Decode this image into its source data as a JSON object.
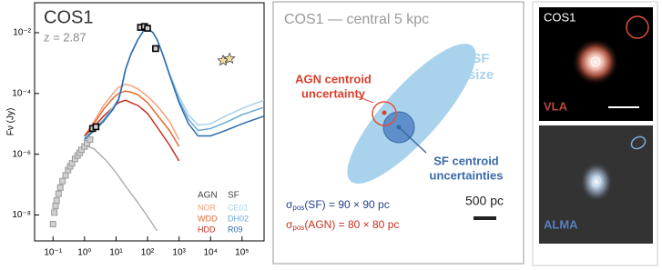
{
  "chart_data": {
    "type": "line",
    "title": "COS1",
    "subtitle": "z = 2.87",
    "ylabel": "Fν (Jy)",
    "log_x": true,
    "log_y": true,
    "xlim": [
      0.026,
      500000
    ],
    "ylim": [
      1.4e-09,
      0.097
    ],
    "xticks": [
      {
        "value": 0.1,
        "label": "10⁻¹"
      },
      {
        "value": 1,
        "label": "10⁰"
      },
      {
        "value": 10,
        "label": "10¹"
      },
      {
        "value": 100,
        "label": "10²"
      },
      {
        "value": 1000,
        "label": "10³"
      },
      {
        "value": 10000,
        "label": "10⁴"
      },
      {
        "value": 100000,
        "label": "10⁵"
      }
    ],
    "yticks": [
      {
        "value": 0.01,
        "label": "10⁻²"
      },
      {
        "value": 0.0001,
        "label": "10⁻⁴"
      },
      {
        "value": 1e-06,
        "label": "10⁻⁶"
      },
      {
        "value": 1e-08,
        "label": "10⁻⁸"
      }
    ],
    "legend_headers": [
      "AGN",
      "SF"
    ],
    "series": [
      {
        "name": "NOR",
        "color": "#f4a07a",
        "style": "line",
        "x": [
          1,
          2,
          4,
          8,
          12,
          20,
          30,
          50,
          100,
          200,
          500,
          1000
        ],
        "values": [
          4e-06,
          1.2e-05,
          4e-05,
          0.0001,
          0.00016,
          0.0002,
          0.00018,
          0.00014,
          8e-05,
          4e-05,
          1.2e-05,
          3e-06
        ]
      },
      {
        "name": "WDD",
        "color": "#e8692e",
        "style": "line",
        "x": [
          1,
          2,
          4,
          8,
          12,
          20,
          30,
          50,
          100,
          200,
          500,
          1000
        ],
        "values": [
          4e-06,
          1e-05,
          3e-05,
          7e-05,
          0.0001,
          0.00012,
          0.00011,
          9e-05,
          5e-05,
          2e-05,
          6e-06,
          1.8e-06
        ]
      },
      {
        "name": "HDD",
        "color": "#c0301f",
        "style": "line",
        "x": [
          1,
          2,
          4,
          8,
          12,
          20,
          30,
          50,
          100,
          200,
          500,
          1000
        ],
        "values": [
          4e-06,
          8e-06,
          1.8e-05,
          3.5e-05,
          5e-05,
          6e-05,
          5e-05,
          4e-05,
          2.2e-05,
          8e-06,
          2e-06,
          6e-07
        ]
      },
      {
        "name": "CE01",
        "color": "#a8d0e8",
        "style": "line",
        "x": [
          1,
          2,
          4,
          8,
          12,
          15,
          20,
          30,
          50,
          80,
          100,
          150,
          200,
          300,
          500,
          1000,
          2000,
          4000,
          10000,
          30000,
          100000,
          500000
        ],
        "values": [
          3.5e-06,
          7e-06,
          1.4e-05,
          3.5e-05,
          7e-05,
          0.00017,
          0.00065,
          0.0021,
          0.0062,
          0.013,
          0.014,
          0.01,
          0.0062,
          0.0021,
          0.00045,
          8e-05,
          2e-05,
          9e-06,
          1e-05,
          1.8e-05,
          3.2e-05,
          6e-05
        ]
      },
      {
        "name": "DH02",
        "color": "#6aa8d8",
        "style": "line",
        "x": [
          1,
          2,
          4,
          8,
          12,
          15,
          20,
          30,
          50,
          80,
          100,
          150,
          200,
          300,
          500,
          1000,
          2000,
          4000,
          10000,
          30000,
          100000,
          500000
        ],
        "values": [
          3.2e-06,
          6.5e-06,
          1.3e-05,
          3.2e-05,
          6.5e-05,
          0.00016,
          0.00062,
          0.002,
          0.006,
          0.013,
          0.014,
          0.01,
          0.006,
          0.002,
          0.00042,
          6e-05,
          1.4e-05,
          6e-06,
          7e-06,
          1.1e-05,
          2e-05,
          3.5e-05
        ]
      },
      {
        "name": "R09",
        "color": "#2d6cab",
        "style": "line",
        "x": [
          1,
          2,
          4,
          8,
          12,
          15,
          20,
          30,
          50,
          80,
          100,
          150,
          200,
          300,
          500,
          1000,
          2000,
          4000,
          10000,
          30000,
          100000,
          500000
        ],
        "values": [
          3e-06,
          6e-06,
          1.2e-05,
          3e-05,
          6e-05,
          0.00015,
          0.0006,
          0.002,
          0.006,
          0.013,
          0.014,
          0.01,
          0.006,
          0.002,
          0.0004,
          5e-05,
          1e-05,
          4e-06,
          4e-06,
          6e-06,
          1e-05,
          1.8e-05
        ]
      },
      {
        "color": "#b0b0b0",
        "style": "line",
        "x": [
          1,
          2,
          5,
          10,
          20,
          50,
          100,
          200
        ],
        "values": [
          2e-06,
          1.5e-06,
          6e-07,
          2.5e-07,
          9e-08,
          2.5e-08,
          9e-09,
          3e-09
        ]
      },
      {
        "color": "#9a9a9a",
        "style": "square",
        "x": [
          0.1,
          0.11,
          0.12,
          0.13,
          0.15,
          0.17,
          0.2,
          0.25,
          0.3,
          0.35,
          0.4,
          0.5,
          0.6,
          0.7,
          0.8,
          1,
          1.2,
          1.5
        ],
        "values": [
          5e-09,
          1.2e-08,
          2e-08,
          3e-08,
          5e-08,
          8e-08,
          1.3e-07,
          2e-07,
          3e-07,
          4e-07,
          5e-07,
          7e-07,
          9e-07,
          1.1e-06,
          1.4e-06,
          1.8e-06,
          2.3e-06,
          3e-06
        ]
      },
      {
        "color": "#000000",
        "style": "square",
        "x": [
          1.8,
          2.3,
          60,
          80,
          100,
          180
        ],
        "values": [
          7e-06,
          8e-06,
          0.015,
          0.016,
          0.014,
          0.003
        ]
      },
      {
        "color": "#f3dca0",
        "style": "star",
        "x": [
          25000,
          40000
        ],
        "values": [
          0.0012,
          0.0014
        ]
      }
    ]
  },
  "panels": {
    "center": {
      "title": "COS1 — central 5 kpc",
      "agn_label": [
        "AGN centroid",
        "uncertainty"
      ],
      "sf_size": [
        "SF",
        "size"
      ],
      "sf_centroid": [
        "SF centroid",
        "uncertainties"
      ],
      "sigma_sf": {
        "symbol": "σ",
        "sub": "pos",
        "text": "(SF) = 90 × 90 pc"
      },
      "sigma_agn": {
        "symbol": "σ",
        "sub": "pos",
        "text": "(AGN) = 80 × 80 pc"
      },
      "scale": "500 pc"
    },
    "images": {
      "target": "COS1",
      "vla": "VLA",
      "alma": "ALMA"
    }
  }
}
